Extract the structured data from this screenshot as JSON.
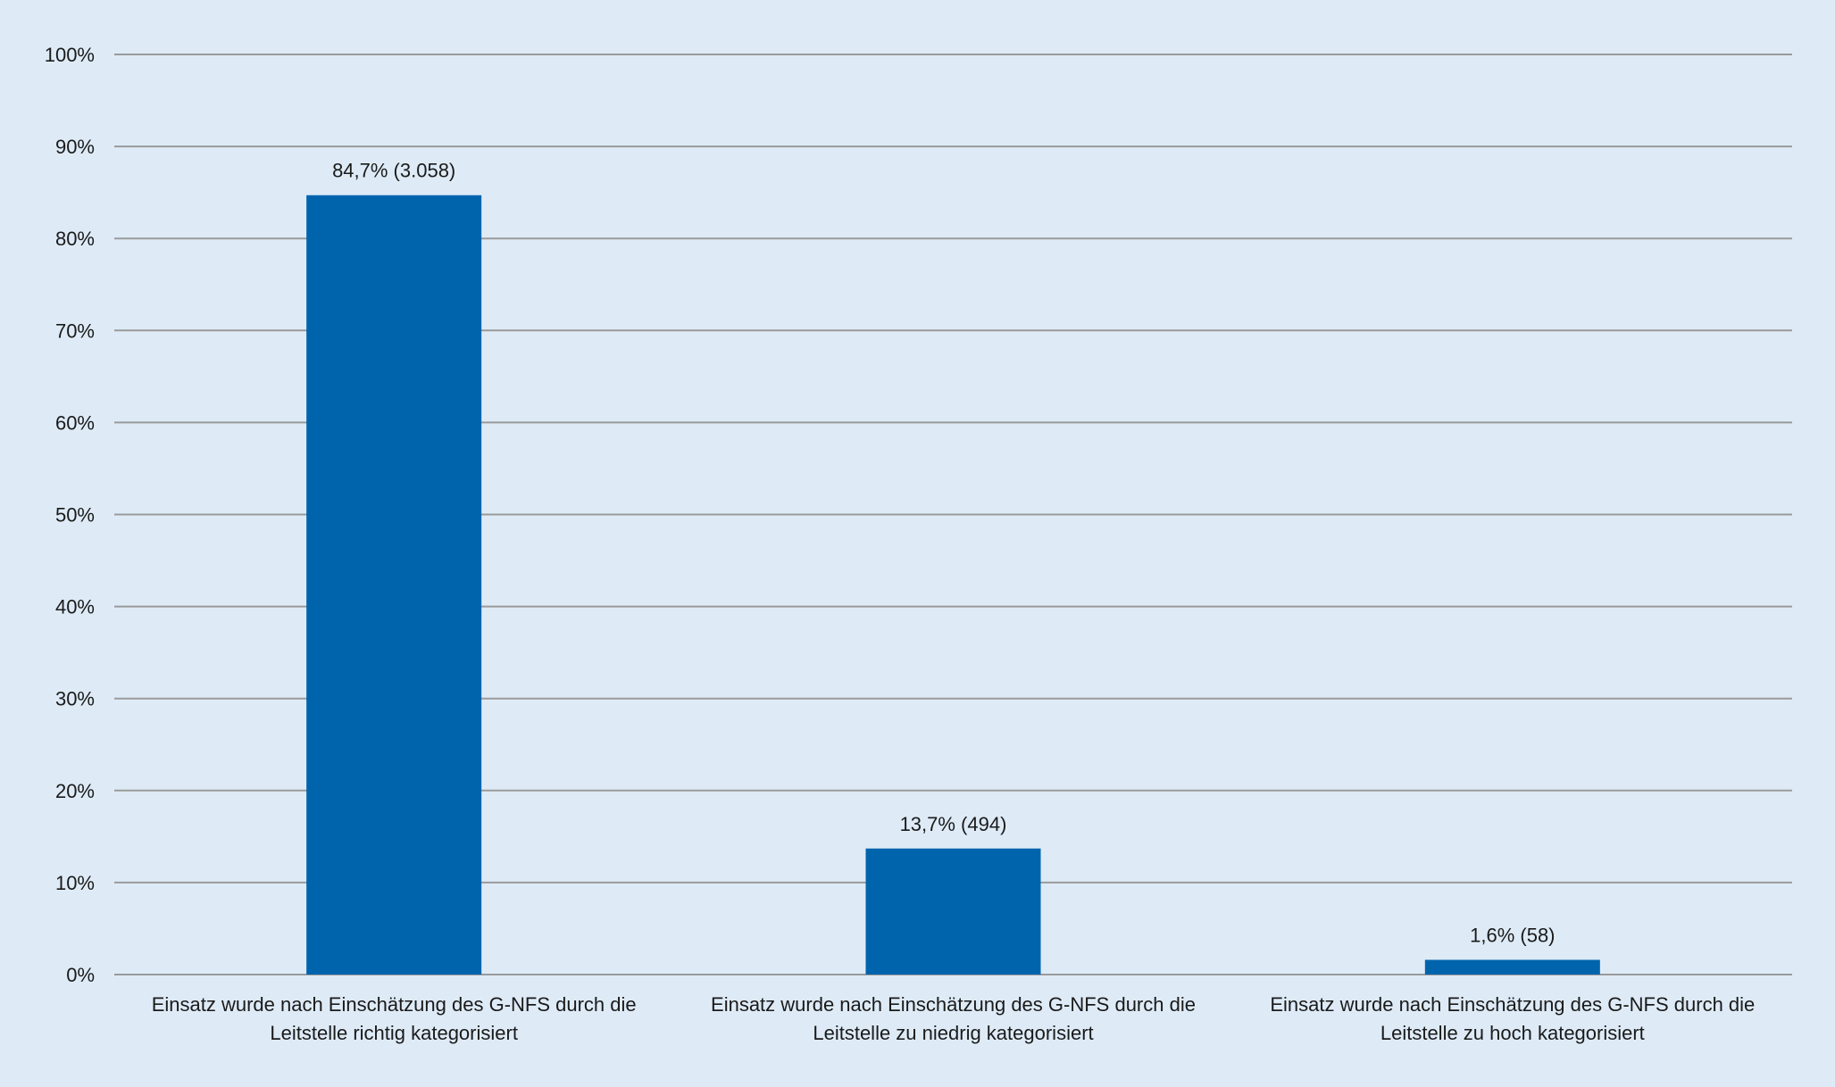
{
  "chart_data": {
    "type": "bar",
    "categories": [
      [
        "Einsatz wurde nach Einschätzung des G-NFS durch die",
        "Leitstelle richtig kategorisiert"
      ],
      [
        "Einsatz wurde nach Einschätzung des G-NFS durch die",
        "Leitstelle zu niedrig kategorisiert"
      ],
      [
        "Einsatz wurde nach Einschätzung des G-NFS durch die",
        "Leitstelle zu hoch kategorisiert"
      ]
    ],
    "values": [
      84.7,
      13.7,
      1.6
    ],
    "data_labels": [
      "84,7% (3.058)",
      "13,7% (494)",
      "1,6% (58)"
    ],
    "y_ticks": [
      "0%",
      "10%",
      "20%",
      "30%",
      "40%",
      "50%",
      "60%",
      "70%",
      "80%",
      "90%",
      "100%"
    ],
    "ylim": [
      0,
      100
    ],
    "title": "",
    "xlabel": "",
    "ylabel": "",
    "grid": true,
    "legend": "none",
    "colors": {
      "bar": "#0064ad",
      "background": "#deebf7",
      "grid": "#9a9a9a"
    }
  }
}
